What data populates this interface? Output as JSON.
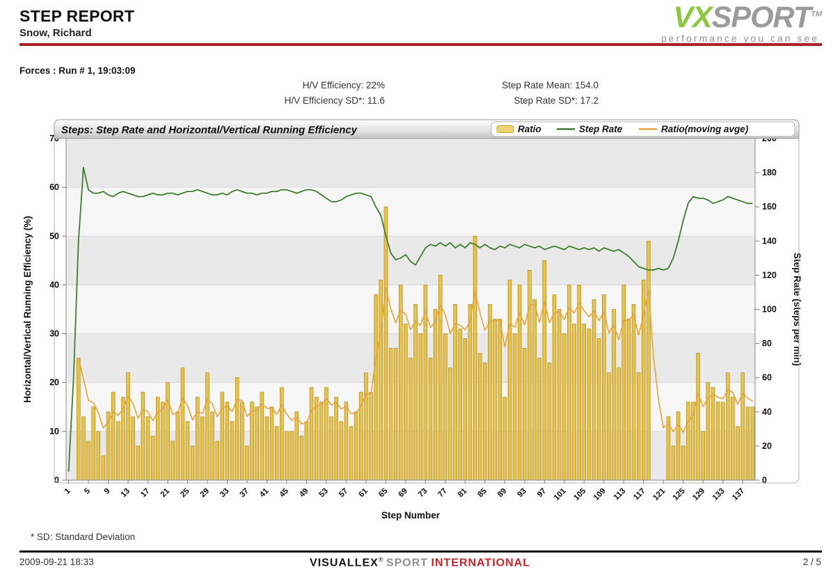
{
  "header": {
    "title": "STEP REPORT",
    "athlete": "Snow, Richard",
    "logo": {
      "vx": "VX",
      "sport": "SPORT",
      "tm": "TM",
      "tagline": "performance you can see"
    }
  },
  "report": {
    "session_label": "Forces : Run # 1, 19:03:09",
    "stats_left": [
      "H/V Efficiency: 22%",
      "H/V Efficiency SD*: 11.6"
    ],
    "stats_right": [
      "Step Rate Mean: 154.0",
      "Step Rate SD*: 17.2"
    ]
  },
  "footnote": "* SD: Standard Deviation",
  "footer": {
    "datetime": "2009-09-21 18:33",
    "brand": {
      "name": "VISUALLEX",
      "reg": "®",
      "sport": "SPORT",
      "intl": "INTERNATIONAL"
    },
    "page": "2 / 5"
  },
  "chart_data": {
    "type": "bar",
    "title": "Steps: Step Rate and Horizontal/Vertical Running Efficiency",
    "xlabel": "Step Number",
    "ylabel_left": "Horizontal/Vertical Running Efficiency (%)",
    "ylabel_right": "Step Rate (steps per min)",
    "ylim_left": [
      0,
      70
    ],
    "ylim_right": [
      0,
      200
    ],
    "y_ticks_left": [
      0,
      10,
      20,
      30,
      40,
      50,
      60,
      70
    ],
    "y_ticks_right": [
      0,
      20,
      40,
      60,
      80,
      100,
      120,
      140,
      160,
      180,
      200
    ],
    "x_ticks": [
      1,
      5,
      9,
      13,
      17,
      21,
      25,
      29,
      33,
      37,
      41,
      45,
      49,
      53,
      57,
      61,
      65,
      69,
      73,
      77,
      81,
      85,
      89,
      93,
      97,
      101,
      105,
      109,
      113,
      117,
      121,
      125,
      129,
      133,
      137
    ],
    "n_steps": 139,
    "grid": true,
    "plot_bands_alternate": true,
    "legend_position": "top-right",
    "legend": [
      {
        "label": "Ratio",
        "type": "bar",
        "color": "#e9c345"
      },
      {
        "label": "Step Rate",
        "type": "line",
        "color": "#3e7d2f"
      },
      {
        "label": "Ratio(moving avge)",
        "type": "line",
        "color": "#e8a33d"
      }
    ],
    "series": [
      {
        "name": "Ratio",
        "axis": "left",
        "type": "bar",
        "values": [
          0,
          0,
          25,
          13,
          8,
          15,
          10,
          5,
          14,
          18,
          12,
          17,
          22,
          13,
          7,
          18,
          13,
          9,
          17,
          16,
          20,
          8,
          14,
          23,
          12,
          7,
          17,
          13,
          22,
          14,
          8,
          18,
          16,
          12,
          21,
          16,
          7,
          16,
          15,
          18,
          13,
          15,
          11,
          19,
          10,
          10,
          14,
          9,
          12,
          19,
          17,
          16,
          19,
          13,
          17,
          12,
          16,
          11,
          14,
          18,
          22,
          18,
          38,
          41,
          56,
          27,
          27,
          40,
          32,
          25,
          36,
          30,
          40,
          25,
          35,
          42,
          30,
          23,
          36,
          31,
          29,
          36,
          50,
          26,
          24,
          36,
          33,
          33,
          17,
          41,
          30,
          40,
          27,
          43,
          37,
          25,
          45,
          24,
          38,
          35,
          30,
          40,
          32,
          40,
          32,
          31,
          37,
          29,
          38,
          22,
          35,
          23,
          40,
          33,
          36,
          22,
          41,
          49,
          0,
          0,
          0,
          13,
          7,
          14,
          7,
          16,
          16,
          26,
          10,
          20,
          19,
          16,
          16,
          22,
          17,
          11,
          22,
          15,
          15
        ]
      },
      {
        "name": "Step Rate",
        "axis": "right",
        "type": "line",
        "values": [
          5,
          60,
          140,
          183,
          170,
          168,
          168,
          169,
          167,
          166,
          168,
          169,
          168,
          167,
          166,
          166,
          167,
          168,
          167,
          167,
          168,
          168,
          167,
          168,
          169,
          169,
          170,
          169,
          168,
          167,
          167,
          168,
          167,
          169,
          170,
          169,
          168,
          168,
          167,
          168,
          168,
          169,
          169,
          170,
          170,
          169,
          168,
          169,
          170,
          170,
          169,
          167,
          165,
          163,
          163,
          164,
          166,
          167,
          168,
          168,
          167,
          166,
          160,
          155,
          143,
          133,
          129,
          130,
          132,
          128,
          126,
          131,
          136,
          138,
          137,
          139,
          137,
          139,
          136,
          138,
          136,
          139,
          138,
          136,
          138,
          136,
          135,
          137,
          136,
          138,
          137,
          136,
          138,
          137,
          136,
          137,
          135,
          136,
          137,
          136,
          135,
          137,
          136,
          135,
          136,
          135,
          136,
          134,
          136,
          135,
          134,
          135,
          133,
          131,
          128,
          125,
          124,
          123,
          123,
          124,
          123,
          124,
          130,
          140,
          152,
          162,
          166,
          165,
          165,
          164,
          162,
          163,
          164,
          166,
          165,
          164,
          163,
          162,
          162
        ]
      },
      {
        "name": "Ratio(moving avge)",
        "axis": "left",
        "type": "line",
        "derived": "exponential moving average of Ratio"
      }
    ]
  }
}
